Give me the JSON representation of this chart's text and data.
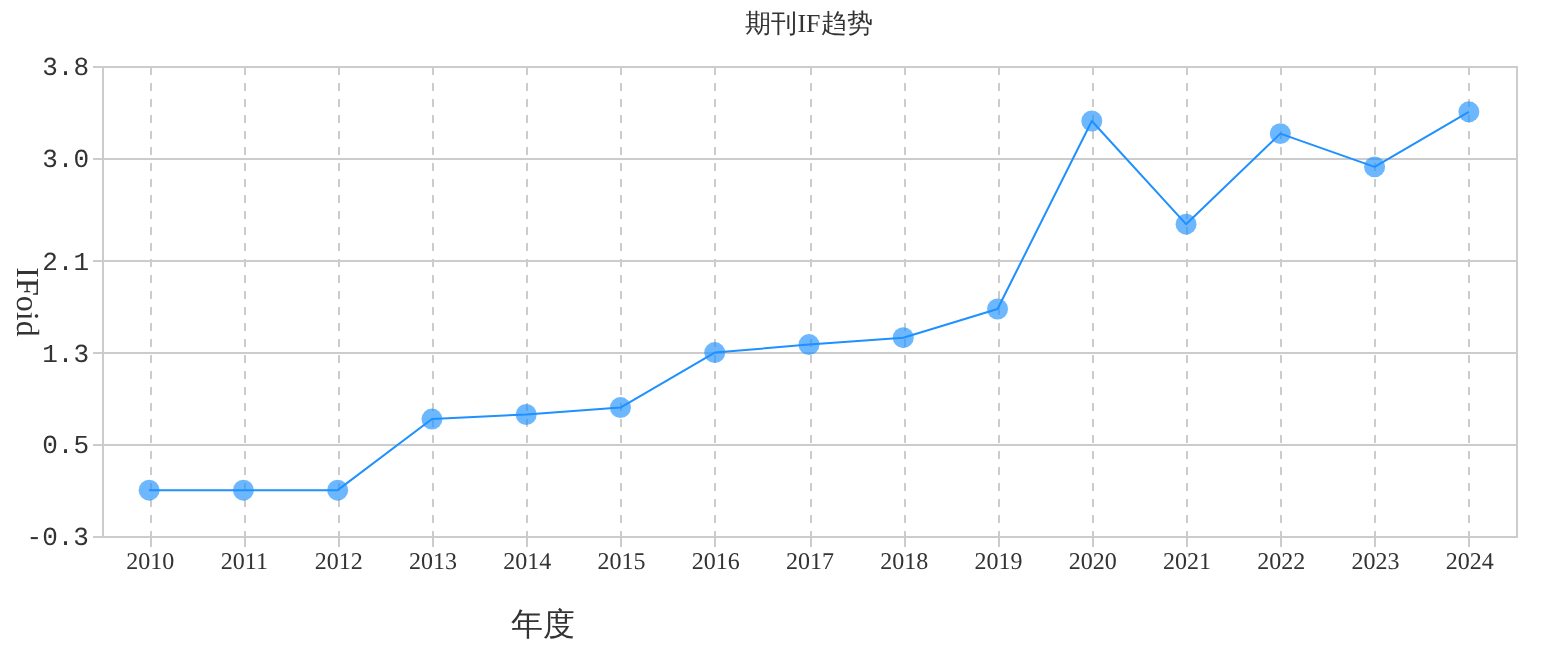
{
  "chart_data": {
    "type": "line",
    "title": "期刊IF趋势",
    "xlabel": "年度",
    "ylabel": "IFoid",
    "categories": [
      "2010",
      "2011",
      "2012",
      "2013",
      "2014",
      "2015",
      "2016",
      "2017",
      "2018",
      "2019",
      "2020",
      "2021",
      "2022",
      "2023",
      "2024"
    ],
    "series": [
      {
        "color": "#1e90ff",
        "values": [
          0.1,
          0.1,
          0.1,
          0.72,
          0.76,
          0.82,
          1.3,
          1.37,
          1.43,
          1.68,
          3.32,
          2.42,
          3.21,
          2.92,
          3.4
        ]
      }
    ],
    "ylim": [
      -0.3,
      3.8
    ],
    "yticks": [
      -0.3,
      0.5,
      1.3,
      2.1,
      {
        "value": 3.0,
        "label": "3.0"
      },
      3.8
    ],
    "grid": true,
    "marker": "circle",
    "line_style": "solid"
  }
}
